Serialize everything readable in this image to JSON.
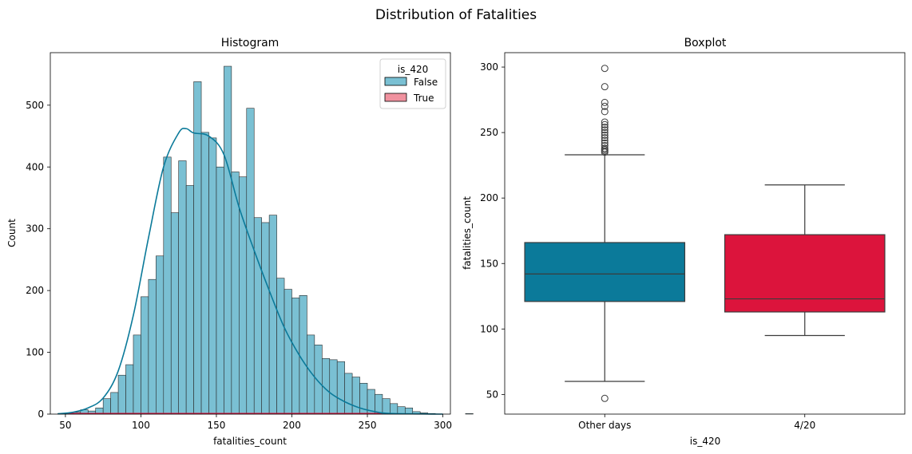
{
  "figure_title": "Distribution of Fatalities",
  "colors": {
    "false": "#0b7a9a",
    "true": "#dc143c",
    "false_fill": "#7ac0d3",
    "true_fill": "#f0929f"
  },
  "chart_data": [
    {
      "type": "bar",
      "subtype": "histogram",
      "title": "Histogram",
      "xlabel": "fatalities_count",
      "ylabel": "Count",
      "xlim": [
        40,
        305
      ],
      "ylim": [
        0,
        585
      ],
      "xticks": [
        50,
        100,
        150,
        200,
        250,
        300
      ],
      "yticks": [
        0,
        100,
        200,
        300,
        400,
        500
      ],
      "bin_start": 45,
      "bin_width": 5,
      "legend": {
        "title": "is_420",
        "position": "top-right",
        "entries": [
          "False",
          "True"
        ]
      },
      "series": [
        {
          "name": "False",
          "values": [
            1,
            2,
            3,
            7,
            5,
            10,
            25,
            35,
            63,
            80,
            128,
            190,
            218,
            256,
            416,
            326,
            410,
            370,
            538,
            456,
            447,
            400,
            563,
            392,
            384,
            495,
            318,
            310,
            322,
            220,
            202,
            188,
            192,
            128,
            112,
            90,
            88,
            85,
            66,
            60,
            50,
            40,
            32,
            25,
            17,
            12,
            10,
            4,
            2,
            1,
            0,
            0,
            0,
            0,
            1
          ],
          "kde": [
            [
              45,
              0.5
            ],
            [
              55,
              3
            ],
            [
              65,
              10
            ],
            [
              75,
              26
            ],
            [
              85,
              70
            ],
            [
              95,
              160
            ],
            [
              105,
              285
            ],
            [
              115,
              400
            ],
            [
              125,
              455
            ],
            [
              130,
              462
            ],
            [
              135,
              455
            ],
            [
              145,
              450
            ],
            [
              155,
              420
            ],
            [
              165,
              335
            ],
            [
              175,
              265
            ],
            [
              185,
              200
            ],
            [
              195,
              140
            ],
            [
              205,
              95
            ],
            [
              215,
              60
            ],
            [
              225,
              35
            ],
            [
              235,
              20
            ],
            [
              245,
              10
            ],
            [
              255,
              4
            ],
            [
              265,
              1
            ],
            [
              300,
              0
            ]
          ]
        },
        {
          "name": "True",
          "values": [
            0,
            0,
            0,
            0,
            0,
            0,
            0,
            0,
            0,
            0,
            0,
            0,
            0,
            0,
            0,
            0,
            1,
            1,
            1,
            0,
            0,
            1,
            0,
            0,
            0,
            1,
            0,
            1,
            0,
            0,
            0,
            1,
            0,
            0,
            0,
            1,
            0,
            0,
            0,
            0,
            0,
            0,
            0,
            0,
            0,
            0,
            0,
            0,
            0,
            0,
            0,
            0,
            0,
            0,
            0
          ]
        }
      ]
    },
    {
      "type": "box",
      "title": "Boxplot",
      "xlabel": "is_420",
      "ylabel": "fatalities_count",
      "ylim": [
        35,
        311
      ],
      "yticks": [
        50,
        100,
        150,
        200,
        250,
        300
      ],
      "categories": [
        "Other days",
        "4/20"
      ],
      "boxes": [
        {
          "category": "Other days",
          "whisker_low": 60,
          "q1": 121,
          "median": 142,
          "q3": 166,
          "whisker_high": 233,
          "outliers": [
            47,
            235,
            236,
            237,
            238,
            240,
            242,
            244,
            246,
            248,
            250,
            252,
            254,
            256,
            258,
            266,
            270,
            273,
            285,
            299
          ]
        },
        {
          "category": "4/20",
          "whisker_low": 95,
          "q1": 113,
          "median": 123,
          "q3": 172,
          "whisker_high": 210,
          "outliers": []
        }
      ]
    }
  ]
}
